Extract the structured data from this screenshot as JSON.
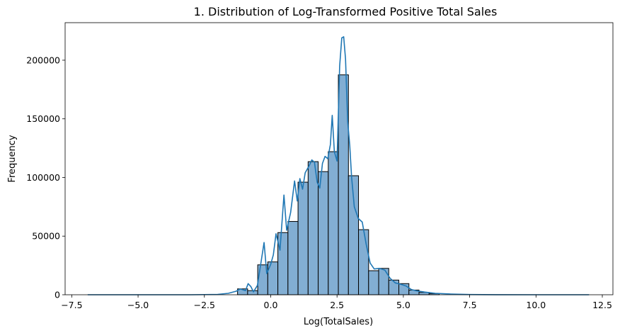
{
  "chart_data": {
    "type": "histogram",
    "title": "1. Distribution of Log-Transformed Positive Total Sales",
    "xlabel": "Log(TotalSales)",
    "ylabel": "Frequency",
    "xlim": [
      -7.75,
      12.9
    ],
    "ylim": [
      0,
      232000
    ],
    "xticks": [
      -7.5,
      -5.0,
      -2.5,
      0.0,
      2.5,
      5.0,
      7.5,
      10.0,
      12.5
    ],
    "xtick_labels": [
      "−7.5",
      "−5.0",
      "−2.5",
      "0.0",
      "2.5",
      "5.0",
      "7.5",
      "10.0",
      "12.5"
    ],
    "yticks": [
      0,
      50000,
      100000,
      150000,
      200000
    ],
    "ytick_labels": [
      "0",
      "50000",
      "100000",
      "150000",
      "200000"
    ],
    "bar_color": "#82aed3",
    "edge_color": "#000000",
    "line_color": "#1f77b4",
    "bins": [
      {
        "x0": -1.25,
        "x1": -0.87,
        "value": 5000
      },
      {
        "x0": -0.87,
        "x1": -0.49,
        "value": 3500
      },
      {
        "x0": -0.49,
        "x1": -0.11,
        "value": 25500
      },
      {
        "x0": -0.11,
        "x1": 0.27,
        "value": 28000
      },
      {
        "x0": 0.27,
        "x1": 0.65,
        "value": 53000
      },
      {
        "x0": 0.65,
        "x1": 1.03,
        "value": 62500
      },
      {
        "x0": 1.03,
        "x1": 1.41,
        "value": 96000
      },
      {
        "x0": 1.41,
        "x1": 1.79,
        "value": 113500
      },
      {
        "x0": 1.79,
        "x1": 2.17,
        "value": 105000
      },
      {
        "x0": 2.17,
        "x1": 2.55,
        "value": 122000
      },
      {
        "x0": 2.55,
        "x1": 2.93,
        "value": 187500
      },
      {
        "x0": 2.93,
        "x1": 3.31,
        "value": 101500
      },
      {
        "x0": 3.31,
        "x1": 3.69,
        "value": 55500
      },
      {
        "x0": 3.69,
        "x1": 4.07,
        "value": 20500
      },
      {
        "x0": 4.07,
        "x1": 4.45,
        "value": 22500
      },
      {
        "x0": 4.45,
        "x1": 4.83,
        "value": 12500
      },
      {
        "x0": 4.83,
        "x1": 5.21,
        "value": 9500
      },
      {
        "x0": 5.21,
        "x1": 5.59,
        "value": 4000
      },
      {
        "x0": 5.59,
        "x1": 5.97,
        "value": 2000
      },
      {
        "x0": 5.97,
        "x1": 6.35,
        "value": 1000
      }
    ],
    "kde": [
      [
        -6.9,
        0
      ],
      [
        -3.0,
        0
      ],
      [
        -2.0,
        300
      ],
      [
        -1.6,
        1200
      ],
      [
        -1.3,
        3000
      ],
      [
        -1.15,
        5000
      ],
      [
        -0.95,
        3500
      ],
      [
        -0.85,
        9500
      ],
      [
        -0.75,
        7000
      ],
      [
        -0.65,
        2500
      ],
      [
        -0.5,
        8000
      ],
      [
        -0.35,
        30000
      ],
      [
        -0.25,
        44500
      ],
      [
        -0.15,
        18000
      ],
      [
        0.0,
        26000
      ],
      [
        0.1,
        34000
      ],
      [
        0.2,
        52000
      ],
      [
        0.35,
        38000
      ],
      [
        0.5,
        85000
      ],
      [
        0.6,
        55000
      ],
      [
        0.75,
        70000
      ],
      [
        0.9,
        97000
      ],
      [
        1.0,
        80000
      ],
      [
        1.1,
        99000
      ],
      [
        1.2,
        90000
      ],
      [
        1.3,
        104000
      ],
      [
        1.45,
        110000
      ],
      [
        1.55,
        115000
      ],
      [
        1.65,
        113000
      ],
      [
        1.75,
        96000
      ],
      [
        1.85,
        91000
      ],
      [
        1.95,
        112000
      ],
      [
        2.05,
        118000
      ],
      [
        2.15,
        116000
      ],
      [
        2.25,
        128000
      ],
      [
        2.32,
        153000
      ],
      [
        2.4,
        122000
      ],
      [
        2.5,
        114000
      ],
      [
        2.6,
        195000
      ],
      [
        2.68,
        219000
      ],
      [
        2.75,
        220000
      ],
      [
        2.82,
        201000
      ],
      [
        2.9,
        148000
      ],
      [
        2.98,
        127000
      ],
      [
        3.05,
        100000
      ],
      [
        3.15,
        75000
      ],
      [
        3.3,
        65000
      ],
      [
        3.45,
        62000
      ],
      [
        3.6,
        43000
      ],
      [
        3.75,
        27000
      ],
      [
        3.9,
        22000
      ],
      [
        4.1,
        22500
      ],
      [
        4.3,
        21000
      ],
      [
        4.5,
        14000
      ],
      [
        4.7,
        10000
      ],
      [
        4.9,
        9000
      ],
      [
        5.1,
        7500
      ],
      [
        5.3,
        4500
      ],
      [
        5.5,
        3300
      ],
      [
        5.8,
        2300
      ],
      [
        6.2,
        1200
      ],
      [
        6.8,
        600
      ],
      [
        7.5,
        200
      ],
      [
        8.5,
        60
      ],
      [
        10.0,
        10
      ],
      [
        12.0,
        0
      ]
    ]
  }
}
